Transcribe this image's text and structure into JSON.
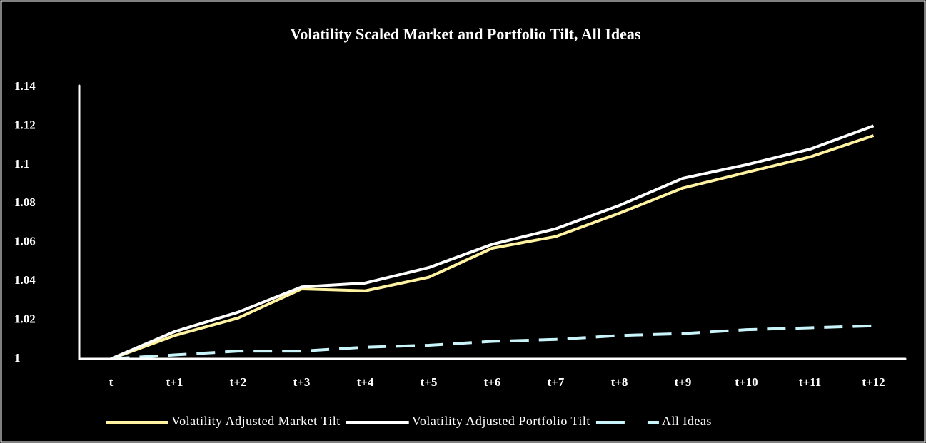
{
  "chart_data": {
    "type": "line",
    "title": "Volatility Scaled Market and Portfolio Tilt, All Ideas",
    "categories": [
      "t",
      "t+1",
      "t+2",
      "t+3",
      "t+4",
      "t+5",
      "t+6",
      "t+7",
      "t+8",
      "t+9",
      "t+10",
      "t+11",
      "t+12"
    ],
    "series": [
      {
        "name": "Volatility Adjusted Market Tilt",
        "color": "#fff2a0",
        "dash": false,
        "values": [
          1.0,
          1.012,
          1.021,
          1.036,
          1.035,
          1.042,
          1.057,
          1.063,
          1.075,
          1.088,
          1.096,
          1.104,
          1.115
        ]
      },
      {
        "name": "Volatility Adjusted Portfolio Tilt",
        "color": "#ffffff",
        "dash": false,
        "values": [
          1.0,
          1.014,
          1.024,
          1.037,
          1.039,
          1.047,
          1.059,
          1.067,
          1.079,
          1.093,
          1.1,
          1.108,
          1.12
        ]
      },
      {
        "name": "All Ideas",
        "color": "#c8f4fa",
        "dash": true,
        "values": [
          1.0,
          1.002,
          1.004,
          1.004,
          1.006,
          1.007,
          1.009,
          1.01,
          1.012,
          1.013,
          1.015,
          1.016,
          1.017
        ]
      }
    ],
    "ylim": [
      1,
      1.14
    ],
    "yticks": [
      1,
      1.02,
      1.04,
      1.06,
      1.08,
      1.1,
      1.12,
      1.14
    ],
    "grid": false,
    "legend": "bottom"
  }
}
